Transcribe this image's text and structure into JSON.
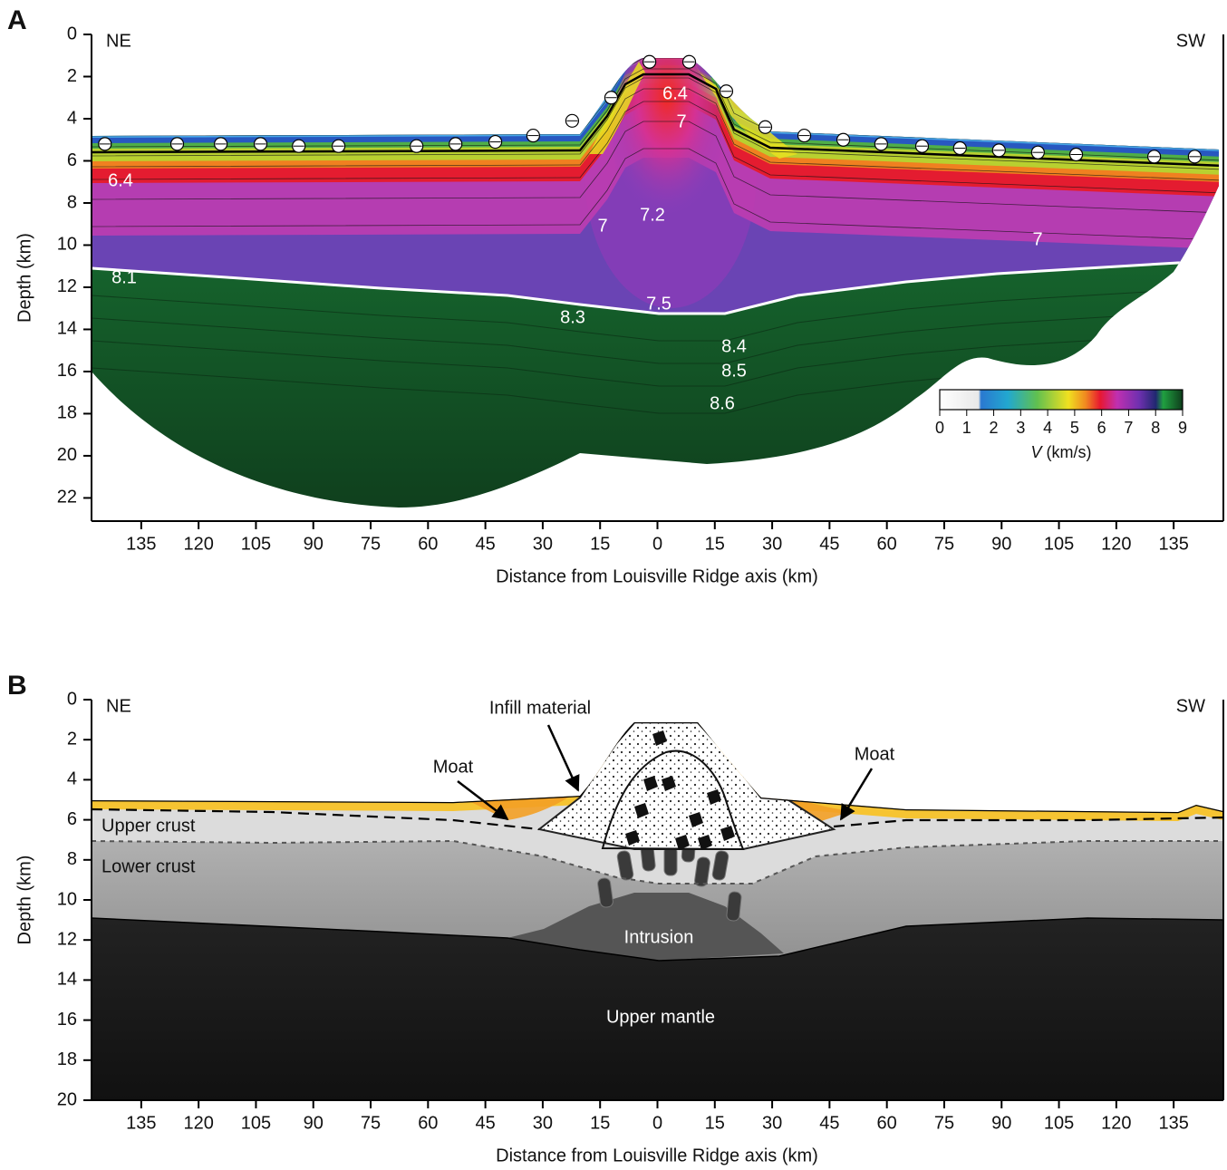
{
  "chart_data": [
    {
      "type": "section",
      "panel_label": "A",
      "left_label": "NE",
      "right_label": "SW",
      "xlabel": "Distance from Louisville Ridge axis (km)",
      "ylabel": "Depth (km)",
      "xlim": [
        -148,
        148
      ],
      "ylim": [
        0,
        23.1
      ],
      "xticks": [
        {
          "value": -135,
          "label": "135"
        },
        {
          "value": -120,
          "label": "120"
        },
        {
          "value": -105,
          "label": "105"
        },
        {
          "value": -90,
          "label": "90"
        },
        {
          "value": -75,
          "label": "75"
        },
        {
          "value": -60,
          "label": "60"
        },
        {
          "value": -45,
          "label": "45"
        },
        {
          "value": -30,
          "label": "30"
        },
        {
          "value": -15,
          "label": "15"
        },
        0,
        15,
        30,
        45,
        60,
        75,
        90,
        105,
        120,
        135
      ],
      "yticks": [
        0,
        2,
        4,
        6,
        8,
        10,
        12,
        14,
        16,
        18,
        20,
        22
      ],
      "stations": {
        "x": [
          -144.5,
          -125.6,
          -114.2,
          -103.8,
          -93.8,
          -83.4,
          -63,
          -52.8,
          -42.4,
          -32.5,
          -22.3,
          -12.1,
          -2.1,
          8.3,
          18,
          28.2,
          38.4,
          48.6,
          58.5,
          69.2,
          79.1,
          89.3,
          99.5,
          109.5,
          129.9,
          140.5
        ],
        "values": [
          5.2,
          5.2,
          5.2,
          5.2,
          5.3,
          5.3,
          5.3,
          5.2,
          5.1,
          4.8,
          4.1,
          3.0,
          1.3,
          1.3,
          2.7,
          4.4,
          4.8,
          5.0,
          5.2,
          5.3,
          5.4,
          5.5,
          5.6,
          5.7,
          5.8,
          5.8
        ]
      },
      "contour_labels": [
        "6.4",
        "7",
        "6.4",
        "7",
        "7.2",
        "7",
        "8.1",
        "7.5",
        "8.3",
        "8.4",
        "8.5",
        "8.6"
      ],
      "colorbar": {
        "lim": [
          0,
          9
        ],
        "ticks": [
          0,
          1,
          2,
          3,
          4,
          5,
          6,
          7,
          8,
          9
        ],
        "symbol": "V",
        "unit": "(km/s)"
      }
    },
    {
      "type": "interpretation",
      "panel_label": "B",
      "left_label": "NE",
      "right_label": "SW",
      "xlabel": "Distance from Louisville Ridge axis (km)",
      "ylabel": "Depth (km)",
      "xlim": [
        -148,
        148
      ],
      "ylim": [
        0,
        20
      ],
      "xticks": [
        {
          "value": -135,
          "label": "135"
        },
        {
          "value": -120,
          "label": "120"
        },
        {
          "value": -105,
          "label": "105"
        },
        {
          "value": -90,
          "label": "90"
        },
        {
          "value": -75,
          "label": "75"
        },
        {
          "value": -60,
          "label": "60"
        },
        {
          "value": -45,
          "label": "45"
        },
        {
          "value": -30,
          "label": "30"
        },
        {
          "value": -15,
          "label": "15"
        },
        0,
        15,
        30,
        45,
        60,
        75,
        90,
        105,
        120,
        135
      ],
      "yticks": [
        0,
        2,
        4,
        6,
        8,
        10,
        12,
        14,
        16,
        18,
        20
      ],
      "annotations": {
        "infill": "Infill material",
        "moat_left": "Moat",
        "moat_right": "Moat",
        "upper_crust": "Upper crust",
        "lower_crust": "Lower crust",
        "intrusion": "Intrusion",
        "upper_mantle": "Upper mantle"
      }
    }
  ]
}
